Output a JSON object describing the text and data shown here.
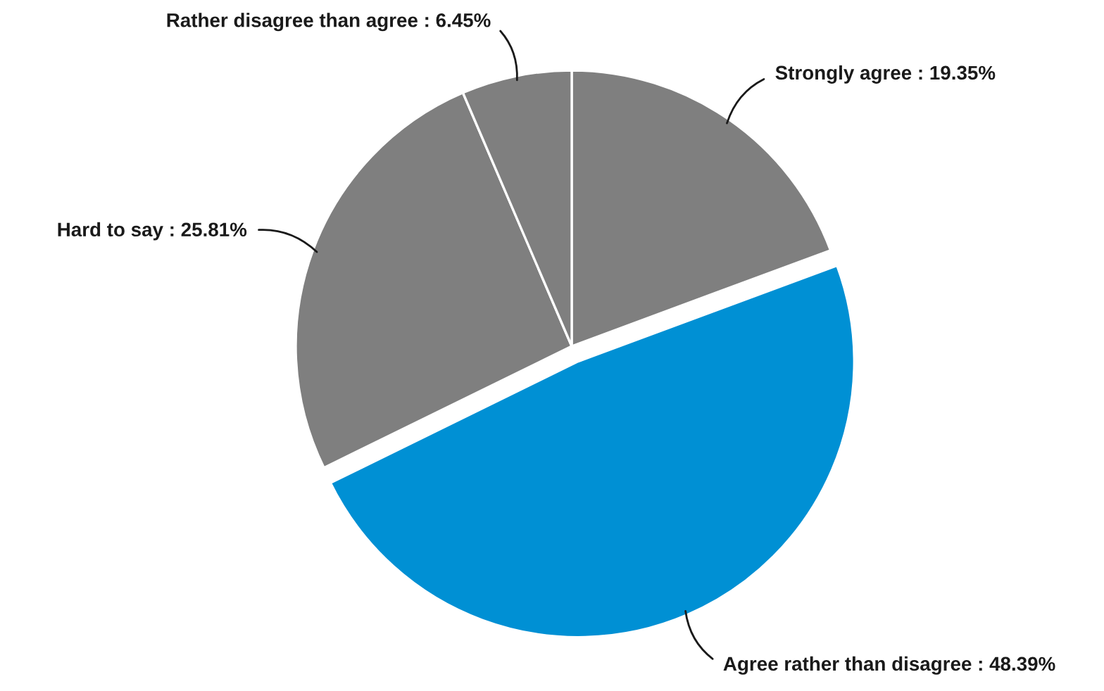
{
  "chart_data": {
    "type": "pie",
    "categories": [
      "Strongly agree",
      "Agree rather than disagree",
      "Hard to say",
      "Rather disagree than agree"
    ],
    "values": [
      19.35,
      48.39,
      25.81,
      6.45
    ],
    "colors": [
      "#7f7f7f",
      "#0090d4",
      "#7f7f7f",
      "#7f7f7f"
    ],
    "value_labels": [
      "19.35%",
      "48.39%",
      "25.81%",
      "6.45%"
    ]
  }
}
